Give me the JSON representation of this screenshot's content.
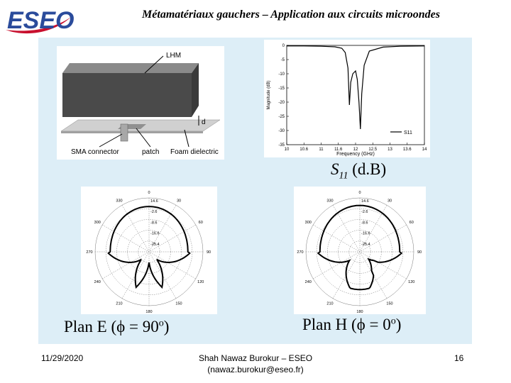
{
  "header": {
    "logo_text": "ESEO",
    "title": "Métamatériaux gauchers – Application aux circuits microondes"
  },
  "antenna_figure": {
    "lhm_label": "LHM",
    "d_label": "d",
    "sma_label": "SMA connector",
    "patch_label": "patch",
    "foam_label": "Foam dielectric"
  },
  "s11_caption": {
    "symbol": "S",
    "subscript": "11",
    "unit": "(d.B)"
  },
  "chart_data": [
    {
      "type": "line",
      "xlabel": "Frequency (GHz)",
      "ylabel": "Magnitude (dB)",
      "xlim": [
        10,
        14
      ],
      "ylim": [
        -35,
        0
      ],
      "x_ticks": [
        "10",
        "10.6",
        "11",
        "11.6",
        "12",
        "12.5",
        "13",
        "13.6",
        "14"
      ],
      "y_ticks": [
        "0",
        "-5",
        "-10",
        "-15",
        "-20",
        "-25",
        "-30",
        "-35"
      ],
      "legend": [
        "S11"
      ],
      "legend_position": "bottom-right",
      "series": [
        {
          "name": "S11",
          "x": [
            10,
            10.5,
            11,
            11.4,
            11.6,
            11.7,
            11.78,
            11.82,
            11.86,
            11.92,
            12.0,
            12.05,
            12.1,
            12.14,
            12.18,
            12.25,
            12.4,
            12.8,
            13.3,
            14
          ],
          "y": [
            -0.2,
            -0.2,
            -0.3,
            -0.5,
            -1.0,
            -2.5,
            -8.0,
            -21.0,
            -13.0,
            -10.0,
            -9.0,
            -12.0,
            -20.0,
            -29.5,
            -17.0,
            -7.0,
            -2.0,
            -0.6,
            -0.3,
            -0.2
          ]
        }
      ]
    },
    {
      "type": "polar",
      "caption_prefix": "Plan E (",
      "phi": "ϕ",
      "caption_equal": " = 90",
      "degree": "o",
      "caption_suffix": ")",
      "angle_labels": [
        "0",
        "30",
        "60",
        "90",
        "120",
        "150",
        "180",
        "210",
        "240",
        "270",
        "300",
        "330"
      ],
      "radial_labels": [
        "14.6",
        "-2.6",
        "-8.6",
        "-16.6",
        "-25.4"
      ]
    },
    {
      "type": "polar",
      "caption_prefix": "Plan H (",
      "phi": "ϕ",
      "caption_equal": " = 0",
      "degree": "o",
      "caption_suffix": ")",
      "angle_labels": [
        "0",
        "30",
        "60",
        "90",
        "120",
        "150",
        "180",
        "210",
        "240",
        "270",
        "300",
        "330"
      ],
      "radial_labels": [
        "14.6",
        "-2.6",
        "-8.6",
        "-16.6",
        "-25.4"
      ]
    }
  ],
  "footer": {
    "date": "11/29/2020",
    "author": "Shah Nawaz Burokur – ESEO",
    "email": "(nawaz.burokur@eseo.fr)",
    "page": "16"
  }
}
